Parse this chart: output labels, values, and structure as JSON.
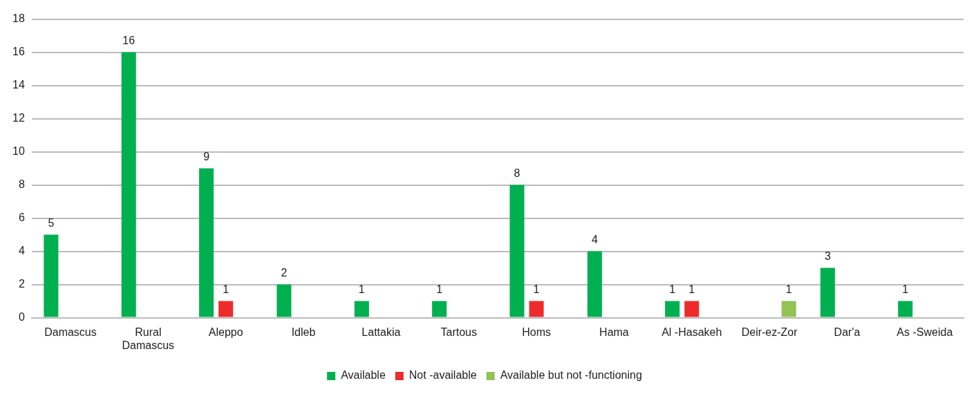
{
  "chart_data": {
    "type": "bar",
    "categories": [
      "Damascus",
      "Rural Damascus",
      "Aleppo",
      "Idleb",
      "Lattakia",
      "Tartous",
      "Homs",
      "Hama",
      "Al -Hasakeh",
      "Deir-ez-Zor",
      "Dar'a",
      "As -Sweida"
    ],
    "series": [
      {
        "name": "Available",
        "color": "#00b050",
        "values": [
          5,
          16,
          9,
          2,
          1,
          1,
          8,
          4,
          1,
          null,
          3,
          1
        ]
      },
      {
        "name": "Not -available",
        "color": "#ee2b2b",
        "values": [
          null,
          null,
          1,
          null,
          null,
          null,
          1,
          null,
          1,
          null,
          null,
          null
        ]
      },
      {
        "name": "Available but not -functioning",
        "color": "#92c353",
        "values": [
          null,
          null,
          null,
          null,
          null,
          null,
          null,
          null,
          null,
          1,
          null,
          null
        ]
      }
    ],
    "ylim": [
      0,
      18
    ],
    "yticks": [
      0,
      2,
      4,
      6,
      8,
      10,
      12,
      14,
      16,
      18
    ],
    "grid": "y",
    "legend": "bottom",
    "data_labels": true
  }
}
